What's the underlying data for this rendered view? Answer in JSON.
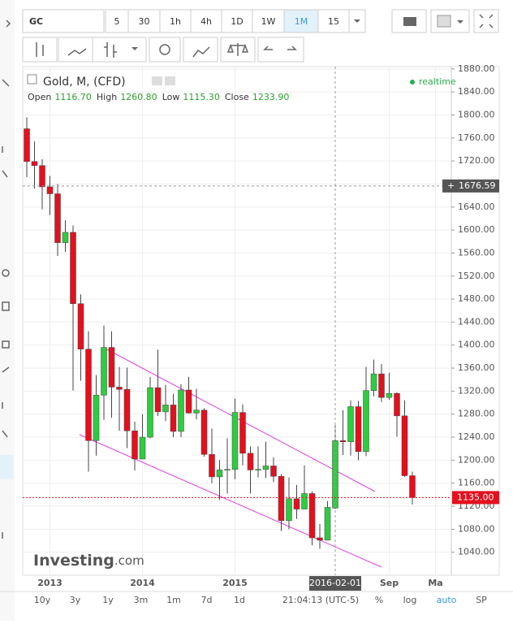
{
  "toolbar": {
    "symbol": "GC",
    "intervals": [
      "5",
      "30",
      "1h",
      "4h",
      "1D",
      "1W",
      "1M",
      "15"
    ]
  },
  "chart_data": {
    "type": "candlestick",
    "title": "Gold, M, (CFD)",
    "status": "realtime",
    "readout": {
      "labels": [
        "Open",
        "High",
        "Low",
        "Close"
      ],
      "values": [
        "1116.70",
        "1260.80",
        "1115.30",
        "1233.90"
      ]
    },
    "x": [
      "2012-10-01",
      "2012-11-01",
      "2012-12-01",
      "2013-01-01",
      "2013-02-01",
      "2013-03-01",
      "2013-04-01",
      "2013-05-01",
      "2013-06-01",
      "2013-07-01",
      "2013-08-01",
      "2013-09-01",
      "2013-10-01",
      "2013-11-01",
      "2013-12-01",
      "2014-01-01",
      "2014-02-01",
      "2014-03-01",
      "2014-04-01",
      "2014-05-01",
      "2014-06-01",
      "2014-07-01",
      "2014-08-01",
      "2014-09-01",
      "2014-10-01",
      "2014-11-01",
      "2014-12-01",
      "2015-01-01",
      "2015-02-01",
      "2015-03-01",
      "2015-04-01",
      "2015-05-01",
      "2015-06-01",
      "2015-07-01",
      "2015-08-01",
      "2015-09-01",
      "2015-10-01",
      "2015-11-01",
      "2015-12-01",
      "2016-01-01",
      "2016-02-01",
      "2016-03-01",
      "2016-04-01",
      "2016-05-01",
      "2016-06-01",
      "2016-07-01",
      "2016-08-01",
      "2016-09-01",
      "2016-10-01",
      "2016-11-01",
      "2016-12-01"
    ],
    "open": [
      1776,
      1719,
      1712,
      1675,
      1663,
      1578,
      1596,
      1472,
      1393,
      1234,
      1313,
      1396,
      1327,
      1323,
      1251,
      1202,
      1240,
      1326,
      1284,
      1296,
      1250,
      1322,
      1282,
      1287,
      1210,
      1171,
      1183,
      1184,
      1283,
      1212,
      1183,
      1184,
      1190,
      1172,
      1095,
      1133,
      1115,
      1142,
      1065,
      1061,
      1116.7,
      1234,
      1232,
      1293,
      1215,
      1321,
      1350,
      1309,
      1316,
      1277,
      1173
    ],
    "high": [
      1796,
      1754,
      1723,
      1694,
      1680,
      1617,
      1608,
      1488,
      1424,
      1348,
      1434,
      1424,
      1362,
      1361,
      1267,
      1280,
      1345,
      1392,
      1331,
      1315,
      1332,
      1345,
      1324,
      1290,
      1255,
      1200,
      1238,
      1307,
      1297,
      1224,
      1224,
      1232,
      1205,
      1176,
      1170,
      1157,
      1191,
      1146,
      1089,
      1129,
      1260.8,
      1287,
      1304,
      1303,
      1362,
      1375,
      1367,
      1352,
      1318,
      1304,
      1180
    ],
    "low": [
      1692,
      1672,
      1636,
      1626,
      1555,
      1562,
      1321,
      1338,
      1180,
      1208,
      1270,
      1274,
      1251,
      1221,
      1182,
      1202,
      1238,
      1277,
      1268,
      1240,
      1240,
      1281,
      1271,
      1206,
      1160,
      1131,
      1142,
      1167,
      1191,
      1142,
      1170,
      1169,
      1162,
      1077,
      1080,
      1098,
      1115,
      1052,
      1046,
      1061,
      1115.3,
      1209,
      1208,
      1200,
      1207,
      1311,
      1301,
      1305,
      1241,
      1171,
      1123
    ],
    "close": [
      1719,
      1712,
      1675,
      1663,
      1578,
      1596,
      1472,
      1393,
      1234,
      1313,
      1396,
      1327,
      1323,
      1251,
      1202,
      1240,
      1326,
      1284,
      1296,
      1250,
      1322,
      1282,
      1287,
      1210,
      1171,
      1183,
      1184,
      1283,
      1212,
      1183,
      1184,
      1190,
      1172,
      1095,
      1133,
      1115,
      1142,
      1065,
      1061,
      1118,
      1233.9,
      1232,
      1293,
      1215,
      1321,
      1350,
      1309,
      1316,
      1277,
      1173,
      1135
    ],
    "up_color": "#2ecc40",
    "down_color": "#e3101e",
    "ylim": [
      1000,
      1884
    ],
    "yticks": [
      {
        "value": 1040,
        "label": "1040.00"
      },
      {
        "value": 1080,
        "label": "1080.00"
      },
      {
        "value": 1120,
        "label": "1120.00"
      },
      {
        "value": 1160,
        "label": "1160.00"
      },
      {
        "value": 1200,
        "label": "1200.00"
      },
      {
        "value": 1240,
        "label": "1240.00"
      },
      {
        "value": 1280,
        "label": "1280.00"
      },
      {
        "value": 1320,
        "label": "1320.00"
      },
      {
        "value": 1360,
        "label": "1360.00"
      },
      {
        "value": 1400,
        "label": "1400.00"
      },
      {
        "value": 1440,
        "label": "1440.00"
      },
      {
        "value": 1480,
        "label": "1480.00"
      },
      {
        "value": 1520,
        "label": "1520.00"
      },
      {
        "value": 1560,
        "label": "1560.00"
      },
      {
        "value": 1600,
        "label": "1600.00"
      },
      {
        "value": 1640,
        "label": "1640.00"
      },
      {
        "value": 1680,
        "label": "1680.00"
      },
      {
        "value": 1720,
        "label": "1720.00"
      },
      {
        "value": 1760,
        "label": "1760.00"
      },
      {
        "value": 1800,
        "label": "1800.00"
      },
      {
        "value": 1840,
        "label": "1840.00"
      },
      {
        "value": 1880,
        "label": "1880.00"
      }
    ],
    "xticks": [
      {
        "value": "2013-01-01",
        "label": "2013"
      },
      {
        "value": "2014-01-01",
        "label": "2014"
      },
      {
        "value": "2015-01-01",
        "label": "2015"
      },
      {
        "value": "2016-09-01",
        "label": "Sep"
      },
      {
        "value": "2017-03-01",
        "label": "Ma"
      }
    ],
    "crosshair": {
      "price": 1676.59,
      "date": "2016-02-01"
    },
    "last_price": {
      "value": 1135,
      "label": "1135.00"
    },
    "logo": {
      "brand": "Investing",
      "suffix": ".com"
    }
  },
  "bottom_bar": {
    "ranges": [
      "10y",
      "3y",
      "1y",
      "3m",
      "1m",
      "7d",
      "1d"
    ],
    "time": "21:04:13 (UTC-5)",
    "options": [
      "%",
      "log",
      "auto",
      "SP"
    ]
  }
}
